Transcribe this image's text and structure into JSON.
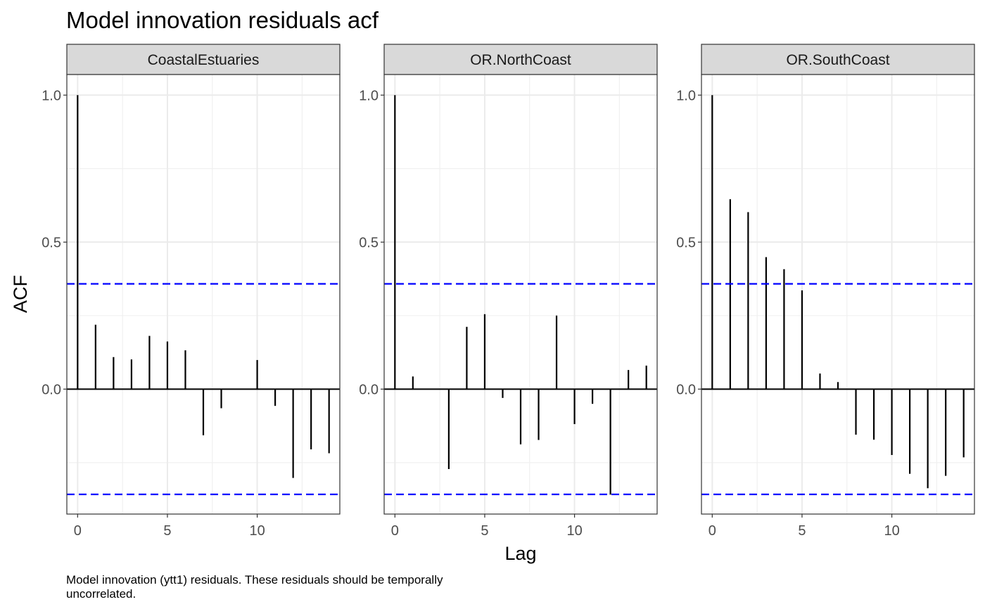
{
  "chart_data": {
    "type": "bar",
    "title": "Model innovation residuals acf",
    "xlabel": "Lag",
    "ylabel": "ACF",
    "caption": [
      "Model innovation (ytt1) residuals. These residuals should be temporally",
      "uncorrelated."
    ],
    "xlim": [
      -0.6,
      14.6
    ],
    "ylim": [
      -0.425,
      1.07
    ],
    "x_ticks": [
      0,
      5,
      10
    ],
    "x_tick_labels": [
      "0",
      "5",
      "10"
    ],
    "y_ticks": [
      1.0,
      0.5,
      0.0
    ],
    "y_tick_labels": [
      "1.0",
      "0.5",
      "0.0"
    ],
    "confidence_bound": 0.358,
    "confidence_color": "#0000ff",
    "grid": true,
    "lags": [
      0,
      1,
      2,
      3,
      4,
      5,
      6,
      7,
      8,
      9,
      10,
      11,
      12,
      13,
      14
    ],
    "panels": [
      {
        "name": "CoastalEstuaries",
        "values": [
          1.0,
          0.219,
          0.109,
          0.101,
          0.181,
          0.162,
          0.132,
          -0.157,
          -0.065,
          0.0,
          0.099,
          -0.057,
          -0.302,
          -0.205,
          -0.218
        ]
      },
      {
        "name": "OR.NorthCoast",
        "values": [
          1.0,
          0.043,
          0.0,
          -0.272,
          0.212,
          0.255,
          -0.03,
          -0.188,
          -0.173,
          0.25,
          -0.119,
          -0.05,
          -0.359,
          0.065,
          0.08
        ]
      },
      {
        "name": "OR.SouthCoast",
        "values": [
          1.0,
          0.646,
          0.602,
          0.449,
          0.408,
          0.336,
          0.053,
          0.024,
          -0.155,
          -0.172,
          -0.224,
          -0.288,
          -0.337,
          -0.295,
          -0.232
        ]
      }
    ]
  }
}
